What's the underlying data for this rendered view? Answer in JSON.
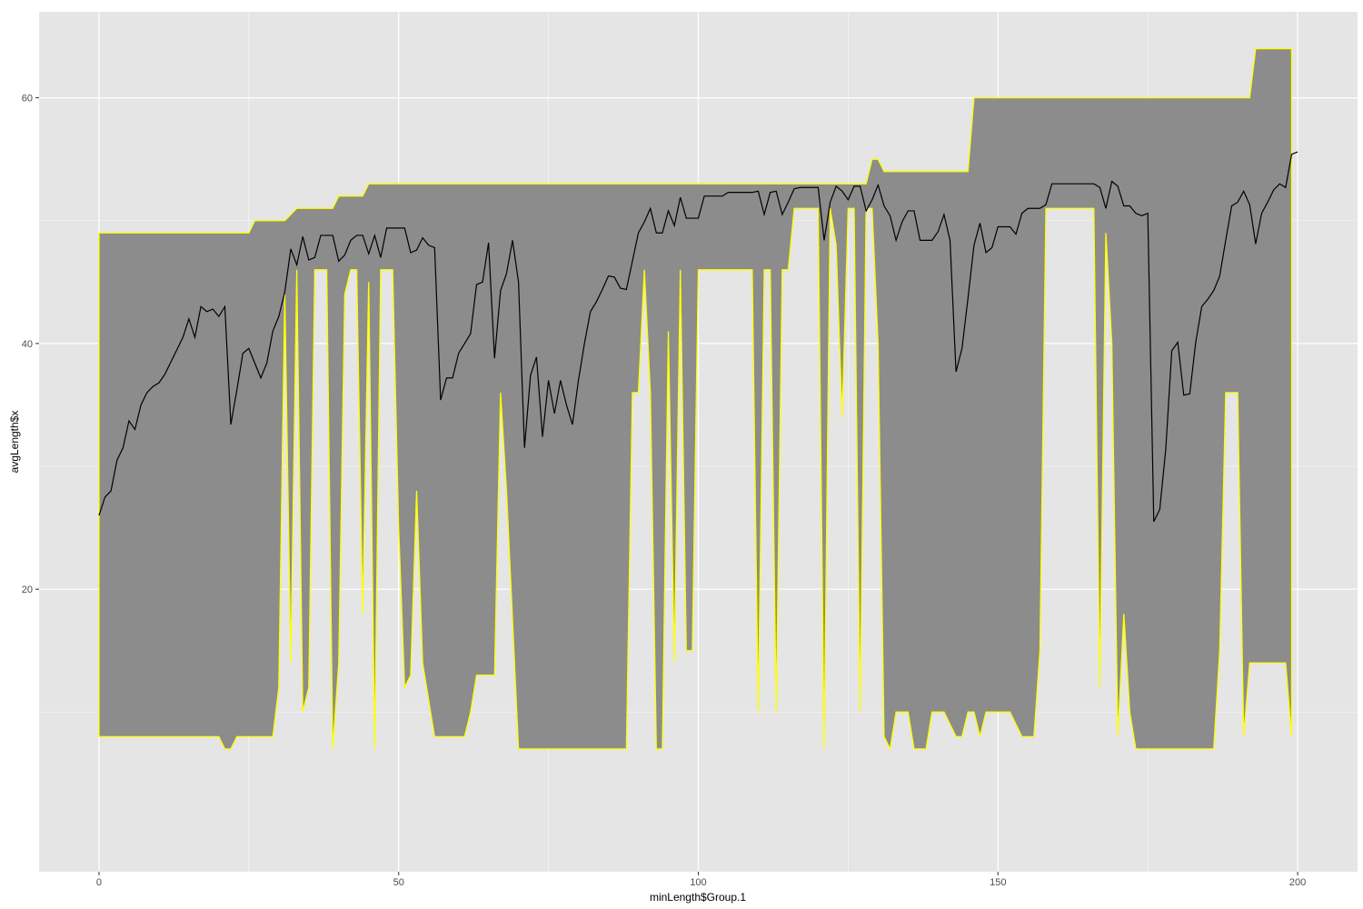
{
  "chart_data": {
    "type": "area",
    "xlabel": "minLength$Group.1",
    "ylabel": "avgLength$x",
    "xlim": [
      -10,
      210
    ],
    "ylim": [
      -3,
      67
    ],
    "x_ticks": [
      0,
      50,
      100,
      150,
      200
    ],
    "y_ticks": [
      20,
      40,
      60
    ],
    "grid": true,
    "colors": {
      "panel": "#e5e5e5",
      "grid": "#ffffff",
      "ribbon_fill": "#8c8c8c",
      "ribbon_outline": "#ffff00",
      "line": "#000000",
      "tick_label": "#4d4d4d"
    },
    "series": [
      {
        "role": "ribbon-upper",
        "points": [
          [
            0,
            49
          ],
          [
            25,
            49
          ],
          [
            26,
            50
          ],
          [
            31,
            50
          ],
          [
            33,
            51
          ],
          [
            39,
            51
          ],
          [
            40,
            52
          ],
          [
            44,
            52
          ],
          [
            45,
            53
          ],
          [
            128,
            53
          ],
          [
            129,
            55
          ],
          [
            130,
            55
          ],
          [
            131,
            54
          ],
          [
            145,
            54
          ],
          [
            146,
            60
          ],
          [
            192,
            60
          ],
          [
            193,
            64
          ],
          [
            199,
            64
          ]
        ]
      },
      {
        "role": "ribbon-lower",
        "points": [
          [
            0,
            8
          ],
          [
            20,
            8
          ],
          [
            21,
            7
          ],
          [
            22,
            7
          ],
          [
            23,
            8
          ],
          [
            29,
            8
          ],
          [
            30,
            12
          ],
          [
            31,
            44
          ],
          [
            32,
            14
          ],
          [
            33,
            46
          ],
          [
            34,
            10
          ],
          [
            35,
            12
          ],
          [
            36,
            46
          ],
          [
            38,
            46
          ],
          [
            39,
            7
          ],
          [
            40,
            14
          ],
          [
            41,
            44
          ],
          [
            42,
            46
          ],
          [
            43,
            46
          ],
          [
            44,
            18
          ],
          [
            45,
            45
          ],
          [
            46,
            7
          ],
          [
            47,
            46
          ],
          [
            49,
            46
          ],
          [
            50,
            25
          ],
          [
            51,
            12
          ],
          [
            52,
            13
          ],
          [
            53,
            28
          ],
          [
            54,
            14
          ],
          [
            55,
            11
          ],
          [
            56,
            8
          ],
          [
            61,
            8
          ],
          [
            62,
            10
          ],
          [
            63,
            13
          ],
          [
            66,
            13
          ],
          [
            67,
            36
          ],
          [
            68,
            28
          ],
          [
            70,
            7
          ],
          [
            88,
            7
          ],
          [
            89,
            36
          ],
          [
            90,
            36
          ],
          [
            91,
            46
          ],
          [
            92,
            36
          ],
          [
            93,
            7
          ],
          [
            94,
            7
          ],
          [
            95,
            41
          ],
          [
            96,
            14
          ],
          [
            97,
            46
          ],
          [
            98,
            15
          ],
          [
            99,
            15
          ],
          [
            100,
            46
          ],
          [
            109,
            46
          ],
          [
            110,
            10
          ],
          [
            111,
            46
          ],
          [
            112,
            46
          ],
          [
            113,
            10
          ],
          [
            114,
            46
          ],
          [
            115,
            46
          ],
          [
            116,
            51
          ],
          [
            120,
            51
          ],
          [
            121,
            7
          ],
          [
            122,
            51
          ],
          [
            123,
            48
          ],
          [
            124,
            34
          ],
          [
            125,
            51
          ],
          [
            126,
            51
          ],
          [
            127,
            10
          ],
          [
            128,
            51
          ],
          [
            129,
            51
          ],
          [
            130,
            40
          ],
          [
            131,
            8
          ],
          [
            132,
            7
          ],
          [
            133,
            10
          ],
          [
            135,
            10
          ],
          [
            136,
            7
          ],
          [
            138,
            7
          ],
          [
            139,
            10
          ],
          [
            141,
            10
          ],
          [
            143,
            8
          ],
          [
            144,
            8
          ],
          [
            145,
            10
          ],
          [
            146,
            10
          ],
          [
            147,
            8
          ],
          [
            148,
            10
          ],
          [
            152,
            10
          ],
          [
            154,
            8
          ],
          [
            156,
            8
          ],
          [
            157,
            15
          ],
          [
            158,
            51
          ],
          [
            166,
            51
          ],
          [
            167,
            12
          ],
          [
            168,
            49
          ],
          [
            169,
            40
          ],
          [
            170,
            8
          ],
          [
            171,
            18
          ],
          [
            172,
            10
          ],
          [
            173,
            7
          ],
          [
            186,
            7
          ],
          [
            187,
            15
          ],
          [
            188,
            36
          ],
          [
            190,
            36
          ],
          [
            191,
            8
          ],
          [
            192,
            14
          ],
          [
            198,
            14
          ],
          [
            199,
            8
          ]
        ]
      },
      {
        "role": "mean-line",
        "points": [
          [
            0,
            26
          ],
          [
            1,
            27.5
          ],
          [
            2,
            28
          ],
          [
            3,
            30.5
          ],
          [
            4,
            31.5
          ],
          [
            5,
            33.7
          ],
          [
            6,
            33
          ],
          [
            7,
            35
          ],
          [
            8,
            36
          ],
          [
            9,
            36.5
          ],
          [
            10,
            36.8
          ],
          [
            11,
            37.5
          ],
          [
            12,
            38.5
          ],
          [
            13,
            39.5
          ],
          [
            14,
            40.5
          ],
          [
            15,
            42
          ],
          [
            16,
            40.5
          ],
          [
            17,
            43
          ],
          [
            18,
            42.6
          ],
          [
            19,
            42.8
          ],
          [
            20,
            42.2
          ],
          [
            21,
            43
          ],
          [
            22,
            33.4
          ],
          [
            23,
            36.2
          ],
          [
            24,
            39.2
          ],
          [
            25,
            39.6
          ],
          [
            26,
            38.4
          ],
          [
            27,
            37.2
          ],
          [
            28,
            38.4
          ],
          [
            29,
            41
          ],
          [
            30,
            42.2
          ],
          [
            31,
            44.2
          ],
          [
            32,
            47.7
          ],
          [
            33,
            46.4
          ],
          [
            34,
            48.7
          ],
          [
            35,
            46.8
          ],
          [
            36,
            47
          ],
          [
            37,
            48.8
          ],
          [
            38,
            48.8
          ],
          [
            39,
            48.8
          ],
          [
            40,
            46.7
          ],
          [
            41,
            47.2
          ],
          [
            42,
            48.4
          ],
          [
            43,
            48.8
          ],
          [
            44,
            48.8
          ],
          [
            45,
            47.3
          ],
          [
            46,
            48.8
          ],
          [
            47,
            47
          ],
          [
            48,
            49.4
          ],
          [
            49,
            49.4
          ],
          [
            50,
            49.4
          ],
          [
            51,
            49.4
          ],
          [
            52,
            47.4
          ],
          [
            53,
            47.6
          ],
          [
            54,
            48.6
          ],
          [
            55,
            48
          ],
          [
            56,
            47.8
          ],
          [
            57,
            35.4
          ],
          [
            58,
            37.2
          ],
          [
            59,
            37.2
          ],
          [
            60,
            39.2
          ],
          [
            61,
            40
          ],
          [
            62,
            40.8
          ],
          [
            63,
            44.8
          ],
          [
            64,
            45
          ],
          [
            65,
            48.2
          ],
          [
            66,
            38.8
          ],
          [
            67,
            44.3
          ],
          [
            68,
            45.7
          ],
          [
            69,
            48.4
          ],
          [
            70,
            45
          ],
          [
            71,
            31.5
          ],
          [
            72,
            37.4
          ],
          [
            73,
            38.9
          ],
          [
            74,
            32.4
          ],
          [
            75,
            37
          ],
          [
            76,
            34.3
          ],
          [
            77,
            37
          ],
          [
            78,
            35
          ],
          [
            79,
            33.4
          ],
          [
            80,
            37
          ],
          [
            81,
            40
          ],
          [
            82,
            42.6
          ],
          [
            83,
            43.4
          ],
          [
            84,
            44.4
          ],
          [
            85,
            45.5
          ],
          [
            86,
            45.4
          ],
          [
            87,
            44.5
          ],
          [
            88,
            44.4
          ],
          [
            89,
            46.7
          ],
          [
            90,
            49
          ],
          [
            91,
            49.9
          ],
          [
            92,
            51
          ],
          [
            93,
            49
          ],
          [
            94,
            49
          ],
          [
            95,
            50.8
          ],
          [
            96,
            49.6
          ],
          [
            97,
            51.9
          ],
          [
            98,
            50.2
          ],
          [
            99,
            50.2
          ],
          [
            100,
            50.2
          ],
          [
            101,
            52
          ],
          [
            102,
            52
          ],
          [
            103,
            52
          ],
          [
            104,
            52
          ],
          [
            105,
            52.3
          ],
          [
            106,
            52.3
          ],
          [
            107,
            52.3
          ],
          [
            108,
            52.3
          ],
          [
            109,
            52.3
          ],
          [
            110,
            52.4
          ],
          [
            111,
            50.5
          ],
          [
            112,
            52.3
          ],
          [
            113,
            52.4
          ],
          [
            114,
            50.5
          ],
          [
            115,
            51.5
          ],
          [
            116,
            52.6
          ],
          [
            117,
            52.7
          ],
          [
            118,
            52.7
          ],
          [
            119,
            52.7
          ],
          [
            120,
            52.7
          ],
          [
            121,
            48.4
          ],
          [
            122,
            51.5
          ],
          [
            123,
            52.8
          ],
          [
            124,
            52.4
          ],
          [
            125,
            51.7
          ],
          [
            126,
            52.8
          ],
          [
            127,
            52.8
          ],
          [
            128,
            50.8
          ],
          [
            129,
            51.7
          ],
          [
            130,
            52.9
          ],
          [
            131,
            51.2
          ],
          [
            132,
            50.4
          ],
          [
            133,
            48.4
          ],
          [
            134,
            49.9
          ],
          [
            135,
            50.8
          ],
          [
            136,
            50.8
          ],
          [
            137,
            48.4
          ],
          [
            138,
            48.4
          ],
          [
            139,
            48.4
          ],
          [
            140,
            49.1
          ],
          [
            141,
            50.5
          ],
          [
            142,
            48.4
          ],
          [
            143,
            37.7
          ],
          [
            144,
            39.6
          ],
          [
            145,
            43.7
          ],
          [
            146,
            48
          ],
          [
            147,
            49.8
          ],
          [
            148,
            47.4
          ],
          [
            149,
            47.8
          ],
          [
            150,
            49.5
          ],
          [
            151,
            49.5
          ],
          [
            152,
            49.5
          ],
          [
            153,
            48.9
          ],
          [
            154,
            50.6
          ],
          [
            155,
            51
          ],
          [
            156,
            51
          ],
          [
            157,
            51
          ],
          [
            158,
            51.3
          ],
          [
            159,
            53
          ],
          [
            160,
            53
          ],
          [
            161,
            53
          ],
          [
            162,
            53
          ],
          [
            163,
            53
          ],
          [
            164,
            53
          ],
          [
            165,
            53
          ],
          [
            166,
            53
          ],
          [
            167,
            52.7
          ],
          [
            168,
            51
          ],
          [
            169,
            53.2
          ],
          [
            170,
            52.8
          ],
          [
            171,
            51.2
          ],
          [
            172,
            51.2
          ],
          [
            173,
            50.6
          ],
          [
            174,
            50.4
          ],
          [
            175,
            50.6
          ],
          [
            176,
            25.5
          ],
          [
            177,
            26.5
          ],
          [
            178,
            31.4
          ],
          [
            179,
            39.4
          ],
          [
            180,
            40.1
          ],
          [
            181,
            35.8
          ],
          [
            182,
            35.9
          ],
          [
            183,
            40.1
          ],
          [
            184,
            43
          ],
          [
            185,
            43.6
          ],
          [
            186,
            44.3
          ],
          [
            187,
            45.5
          ],
          [
            188,
            48.4
          ],
          [
            189,
            51.2
          ],
          [
            190,
            51.5
          ],
          [
            191,
            52.4
          ],
          [
            192,
            51.3
          ],
          [
            193,
            48.1
          ],
          [
            194,
            50.6
          ],
          [
            195,
            51.5
          ],
          [
            196,
            52.5
          ],
          [
            197,
            53
          ],
          [
            198,
            52.7
          ],
          [
            199,
            55.4
          ],
          [
            200,
            55.6
          ]
        ]
      }
    ]
  }
}
